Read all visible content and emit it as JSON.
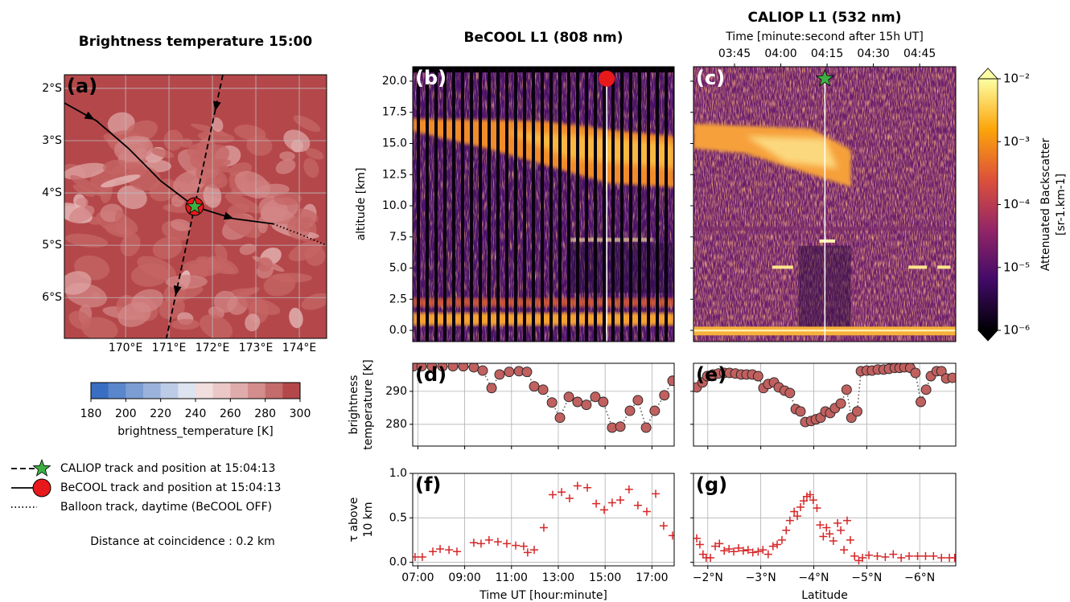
{
  "chart_data": [
    {
      "type": "map",
      "panel_label": "(a)",
      "title": "Brightness temperature 15:00",
      "xlim": [
        168.59,
        174.63
      ],
      "ylim": [
        -6.78,
        -1.74
      ],
      "xticks": [
        {
          "value": 170,
          "label": "170°E"
        },
        {
          "value": 171,
          "label": "171°E"
        },
        {
          "value": 172,
          "label": "172°E"
        },
        {
          "value": 173,
          "label": "173°E"
        },
        {
          "value": 174,
          "label": "174°E"
        }
      ],
      "yticks": [
        {
          "value": -2,
          "label": "2°S"
        },
        {
          "value": -3,
          "label": "3°S"
        },
        {
          "value": -4,
          "label": "4°S"
        },
        {
          "value": -5,
          "label": "5°S"
        },
        {
          "value": -6,
          "label": "6°S"
        }
      ],
      "series": [
        {
          "name": "CALIOP track and position at 15:04:13",
          "style": "dashed",
          "marker": "star",
          "color": "#3cb043",
          "x": [
            172.24,
            170.94
          ],
          "y": [
            -1.74,
            -6.78
          ]
        },
        {
          "name": "BeCOOL track and position at 15:04:13",
          "style": "solid",
          "marker": "circle",
          "color": "#e8191b",
          "x": [
            168.59,
            169.33,
            170.07,
            170.81,
            171.59,
            172.48,
            173.4
          ],
          "y": [
            -2.28,
            -2.62,
            -3.15,
            -3.77,
            -4.26,
            -4.49,
            -4.59
          ]
        },
        {
          "name": "Balloon track, daytime (BeCOOL OFF)",
          "style": "dotted",
          "x": [
            173.4,
            173.96,
            174.63
          ],
          "y": [
            -4.59,
            -4.77,
            -5.0
          ]
        }
      ],
      "position": {
        "x": 171.59,
        "y": -4.26
      },
      "colorbar": {
        "label": "brightness_temperature [K]",
        "lim": [
          180,
          300
        ],
        "ticks": [
          180,
          200,
          220,
          240,
          260,
          280,
          300
        ],
        "colors": [
          "#3a6ec2",
          "#5a86cb",
          "#7b9dd3",
          "#9bb3dc",
          "#bccbe6",
          "#dde3ef",
          "#f1dede",
          "#ebc7c7",
          "#e0abab",
          "#d38d8d",
          "#c46b6b",
          "#b4474a"
        ]
      },
      "note": "Distance at coincidence : 0.2 km"
    },
    {
      "type": "backscatter",
      "panel_label": "(b)",
      "title": "BeCOOL L1 (808 nm)",
      "ylabel": "altitude [km]",
      "xlim": [
        6.78,
        17.95
      ],
      "ylim": [
        -0.9,
        21.16
      ],
      "yticks": [
        {
          "value": 0,
          "label": "0.0"
        },
        2.5,
        {
          "value": 5,
          "label": "5.0"
        },
        7.5,
        {
          "value": 10,
          "label": "10.0"
        },
        12.5,
        {
          "value": 15,
          "label": "15.0"
        },
        17.5,
        {
          "value": 20,
          "label": "20.0"
        }
      ],
      "position": {
        "x": 15.07,
        "y": 20.2
      },
      "marker": "circle",
      "marker_color": "#e8191b"
    },
    {
      "type": "backscatter",
      "panel_label": "(c)",
      "title": "CALIOP L1 (532 nm)",
      "shared_y": true,
      "xlim": [
        -1.73,
        -6.68
      ],
      "ylim": [
        -0.9,
        21.16
      ],
      "yticks": [
        0,
        2.5,
        5,
        7.5,
        10,
        12.5,
        15,
        17.5,
        20
      ],
      "top_xlabel": "Time [minute:second after 15h UT]",
      "top_xlim": [
        211.7,
        296.7
      ],
      "top_xticks": [
        {
          "value": 225,
          "label": "03:45"
        },
        {
          "value": 240,
          "label": "04:00"
        },
        {
          "value": 255,
          "label": "04:15"
        },
        {
          "value": 270,
          "label": "04:30"
        },
        {
          "value": 285,
          "label": "04:45"
        }
      ],
      "position": {
        "x": -4.21,
        "y": 20.2
      },
      "marker": "star",
      "marker_color": "#3cb043",
      "colorbar": {
        "label": [
          "Attenuated Backscatter",
          "[sr-1.km-1]"
        ],
        "scale": "log",
        "lim": [
          1e-06,
          0.01
        ],
        "ticks": [
          {
            "value": 1e-06,
            "label": "10⁻⁶"
          },
          {
            "value": 1e-05,
            "label": "10⁻⁵"
          },
          {
            "value": 0.0001,
            "label": "10⁻⁴"
          },
          {
            "value": 0.001,
            "label": "10⁻³"
          },
          {
            "value": 0.01,
            "label": "10⁻²"
          }
        ],
        "colors": [
          "#000004",
          "#420a68",
          "#932667",
          "#dd513a",
          "#fca50a",
          "#fcffa4"
        ]
      }
    },
    {
      "type": "scatter-line",
      "panel_label": "(d)",
      "ylabel": [
        "brightness",
        "temperature [K]"
      ],
      "shared_x": true,
      "grid": true,
      "color": "#c0605f",
      "xlim": [
        6.78,
        17.95
      ],
      "ylim": [
        273.4,
        298.5
      ],
      "xticks": [
        7,
        9,
        11,
        13,
        15,
        17
      ],
      "yticks": [
        280,
        290
      ],
      "x": [
        6.81,
        7.16,
        7.6,
        8.05,
        8.5,
        8.94,
        9.39,
        9.77,
        10.15,
        10.49,
        10.9,
        11.32,
        11.66,
        11.97,
        12.35,
        12.73,
        13.07,
        13.45,
        13.82,
        14.2,
        14.58,
        14.92,
        15.3,
        15.65,
        16.06,
        16.4,
        16.75,
        17.12,
        17.53,
        17.88
      ],
      "values": [
        297.6,
        297.6,
        297.6,
        297.6,
        297.6,
        297.6,
        297.3,
        296.3,
        291.0,
        295.1,
        295.9,
        296.1,
        295.9,
        291.5,
        290.5,
        286.6,
        282.0,
        288.3,
        286.8,
        285.9,
        288.3,
        286.8,
        279.0,
        279.3,
        284.1,
        287.3,
        279.0,
        284.1,
        288.8,
        293.2
      ]
    },
    {
      "type": "scatter-line",
      "panel_label": "(e)",
      "shared_x": true,
      "shared_y": true,
      "grid": true,
      "color": "#c0605f",
      "xlim": [
        -1.73,
        -6.68
      ],
      "ylim": [
        273.4,
        298.5
      ],
      "xticks": [
        -2,
        -3,
        -4,
        -5,
        -6
      ],
      "yticks": [
        280,
        290
      ],
      "x": [
        -1.79,
        -1.9,
        -1.99,
        -2.1,
        -2.2,
        -2.31,
        -2.41,
        -2.52,
        -2.63,
        -2.73,
        -2.84,
        -2.95,
        -3.05,
        -3.14,
        -3.25,
        -3.34,
        -3.45,
        -3.55,
        -3.66,
        -3.75,
        -3.84,
        -3.95,
        -4.04,
        -4.13,
        -4.22,
        -4.31,
        -4.4,
        -4.51,
        -4.62,
        -4.71,
        -4.82,
        -4.89,
        -5.0,
        -5.1,
        -5.21,
        -5.32,
        -5.42,
        -5.53,
        -5.62,
        -5.71,
        -5.82,
        -5.92,
        -6.02,
        -6.12,
        -6.21,
        -6.32,
        -6.41,
        -6.5,
        -6.62
      ],
      "values": [
        291.2,
        292.7,
        294.6,
        295.1,
        295.4,
        295.6,
        295.6,
        295.4,
        295.1,
        295.1,
        295.1,
        294.6,
        291.0,
        292.2,
        292.7,
        291.2,
        290.2,
        289.5,
        284.6,
        283.9,
        280.7,
        281.0,
        281.5,
        282.0,
        283.9,
        283.4,
        284.9,
        286.3,
        290.5,
        282.0,
        283.9,
        296.1,
        296.3,
        296.3,
        296.6,
        296.6,
        296.8,
        297.1,
        297.1,
        297.3,
        297.1,
        295.6,
        286.8,
        290.5,
        294.6,
        296.1,
        296.1,
        293.9,
        294.1
      ]
    },
    {
      "type": "scatter",
      "panel_label": "(f)",
      "ylabel": [
        "τ above",
        "10 km"
      ],
      "xlabel": "Time UT [hour:minute]",
      "grid": true,
      "color": "#d62728",
      "xlim": [
        6.78,
        17.95
      ],
      "ylim": [
        -0.04,
        1.0
      ],
      "xticks": [
        {
          "value": 7,
          "label": "07:00"
        },
        {
          "value": 9,
          "label": "09:00"
        },
        {
          "value": 11,
          "label": "11:00"
        },
        {
          "value": 13,
          "label": "13:00"
        },
        {
          "value": 15,
          "label": "15:00"
        },
        {
          "value": 17,
          "label": "17:00"
        }
      ],
      "yticks": [
        {
          "value": 0,
          "label": "0.0"
        },
        0.5,
        {
          "value": 1,
          "label": "1.0"
        }
      ],
      "x": [
        6.88,
        7.19,
        7.64,
        7.95,
        8.33,
        8.67,
        9.39,
        9.7,
        10.04,
        10.42,
        10.8,
        11.18,
        11.52,
        11.69,
        11.97,
        12.38,
        12.76,
        13.14,
        13.48,
        13.82,
        14.24,
        14.62,
        14.96,
        15.3,
        15.65,
        16.02,
        16.4,
        16.78,
        17.16,
        17.5,
        17.88
      ],
      "values": [
        0.06,
        0.06,
        0.12,
        0.15,
        0.14,
        0.12,
        0.22,
        0.21,
        0.25,
        0.23,
        0.21,
        0.19,
        0.18,
        0.11,
        0.14,
        0.39,
        0.76,
        0.79,
        0.72,
        0.86,
        0.84,
        0.66,
        0.59,
        0.67,
        0.7,
        0.82,
        0.64,
        0.57,
        0.77,
        0.41,
        0.3
      ]
    },
    {
      "type": "scatter",
      "panel_label": "(g)",
      "xlabel": "Latitude",
      "shared_y": true,
      "grid": true,
      "color": "#d62728",
      "xlim": [
        -1.73,
        -6.68
      ],
      "ylim": [
        -0.04,
        1.0
      ],
      "xticks": [
        {
          "value": -2,
          "label": "−2°N"
        },
        {
          "value": -3,
          "label": "−3°N"
        },
        {
          "value": -4,
          "label": "−4°N"
        },
        {
          "value": -5,
          "label": "−5°N"
        },
        {
          "value": -6,
          "label": "−6°N"
        }
      ],
      "yticks": [
        0,
        0.5,
        1
      ],
      "x": [
        -1.79,
        -1.85,
        -1.91,
        -1.97,
        -2.05,
        -2.14,
        -2.22,
        -2.31,
        -2.4,
        -2.49,
        -2.58,
        -2.67,
        -2.76,
        -2.85,
        -2.95,
        -3.04,
        -3.14,
        -3.23,
        -3.31,
        -3.4,
        -3.48,
        -3.55,
        -3.63,
        -3.69,
        -3.75,
        -3.81,
        -3.87,
        -3.93,
        -3.99,
        -4.06,
        -4.12,
        -4.18,
        -4.24,
        -4.3,
        -4.37,
        -4.45,
        -4.51,
        -4.57,
        -4.63,
        -4.69,
        -4.77,
        -4.85,
        -4.92,
        -5.04,
        -5.2,
        -5.35,
        -5.5,
        -5.65,
        -5.8,
        -5.96,
        -6.11,
        -6.26,
        -6.41,
        -6.56,
        -6.66
      ],
      "values": [
        0.27,
        0.2,
        0.09,
        0.05,
        0.05,
        0.18,
        0.21,
        0.13,
        0.15,
        0.12,
        0.16,
        0.13,
        0.14,
        0.11,
        0.12,
        0.14,
        0.09,
        0.18,
        0.2,
        0.25,
        0.36,
        0.47,
        0.57,
        0.52,
        0.62,
        0.69,
        0.74,
        0.76,
        0.7,
        0.61,
        0.42,
        0.29,
        0.39,
        0.32,
        0.24,
        0.44,
        0.36,
        0.14,
        0.47,
        0.25,
        0.07,
        0.02,
        0.05,
        0.08,
        0.07,
        0.06,
        0.09,
        0.05,
        0.07,
        0.07,
        0.07,
        0.07,
        0.05,
        0.05,
        0.05
      ]
    }
  ]
}
